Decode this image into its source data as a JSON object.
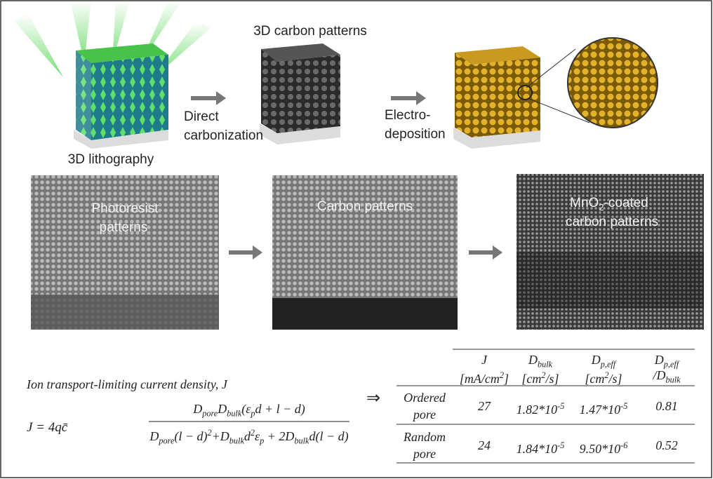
{
  "labels": {
    "carbon_title": "3D carbon patterns",
    "step1": [
      "Direct",
      "carbonization"
    ],
    "step2": [
      "Electro-",
      "deposition"
    ],
    "litho": "3D lithography"
  },
  "sem": [
    {
      "label": [
        "Photoresist",
        "patterns"
      ]
    },
    {
      "label": [
        "Carbon patterns"
      ]
    },
    {
      "label": [
        [
          "MnO",
          {
            "sub": "2"
          },
          "-coated"
        ],
        "carbon patterns"
      ]
    }
  ],
  "equation": {
    "caption": "Ion transport-limiting current density, J",
    "lhs": "J = 4qc̄",
    "numerator": [
      "D",
      {
        "sub": "pore"
      },
      "D",
      {
        "sub": "bulk"
      },
      "(ε",
      {
        "sub": "p"
      },
      "d + l − d)"
    ],
    "denominator": [
      "D",
      {
        "sub": "pore"
      },
      "(l − d)",
      {
        "sup": "2"
      },
      "+D",
      {
        "sub": "bulk"
      },
      "d",
      {
        "sup": "2"
      },
      "ε",
      {
        "sub": "p"
      },
      " + 2D",
      {
        "sub": "bulk"
      },
      "d(l − d)"
    ],
    "implies": "⇒"
  },
  "table": {
    "headers": [
      [
        [
          "J"
        ],
        [
          "[mA/cm",
          {
            "sup": "2"
          },
          "]"
        ]
      ],
      [
        [
          "D",
          {
            "sub": "bulk"
          }
        ],
        [
          "[cm",
          {
            "sup": "2"
          },
          "/s]"
        ]
      ],
      [
        [
          "D",
          {
            "sub": "p,eff"
          }
        ],
        [
          "[cm",
          {
            "sup": "2"
          },
          "/s]"
        ]
      ],
      [
        [
          "D",
          {
            "sub": "p,eff"
          }
        ],
        [
          "/D",
          {
            "sub": "bulk"
          }
        ]
      ]
    ],
    "rows": [
      {
        "label": [
          "Ordered",
          "pore"
        ],
        "cells": [
          27,
          [
            "1.82*10",
            {
              "sup": "-5"
            }
          ],
          [
            "1.47*10",
            {
              "sup": "-5"
            }
          ],
          0.81
        ]
      },
      {
        "label": [
          "Random",
          "pore"
        ],
        "cells": [
          24,
          [
            "1.84*10",
            {
              "sup": "-5"
            }
          ],
          [
            "9.50*10",
            {
              "sup": "-6"
            }
          ],
          0.52
        ]
      }
    ]
  }
}
